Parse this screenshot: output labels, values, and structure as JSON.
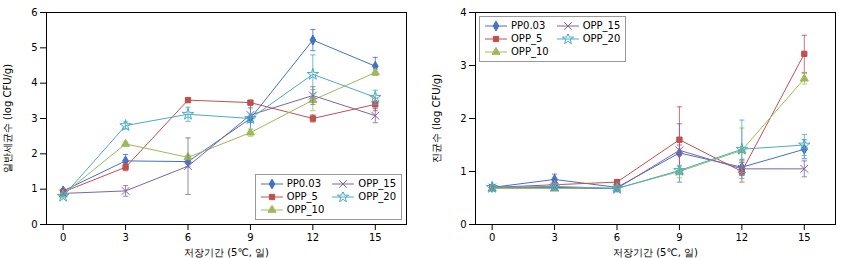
{
  "chart_data": [
    {
      "type": "line",
      "xlabel": "저장기간 (5℃, 일)",
      "ylabel": "일반세균수 (log CFU/g)",
      "x": [
        0,
        3,
        6,
        9,
        12,
        15
      ],
      "xlim": [
        -0.8,
        16.5
      ],
      "xticks": [
        0,
        3,
        6,
        9,
        12,
        15
      ],
      "ylim": [
        0.0,
        6.0
      ],
      "yticks": [
        0,
        1,
        2,
        3,
        4,
        5,
        6
      ],
      "legend": "lower right",
      "series": [
        {
          "name": "PP0.03",
          "color": "#4472C4",
          "marker": "diamond",
          "values": [
            0.95,
            1.8,
            1.78,
            3.0,
            5.22,
            4.48
          ],
          "errors": [
            0.05,
            0.18,
            0.15,
            0.38,
            0.3,
            0.25
          ]
        },
        {
          "name": "OPP_5",
          "color": "#C0504D",
          "marker": "square",
          "values": [
            0.92,
            1.62,
            3.52,
            3.45,
            3.0,
            3.4
          ],
          "errors": [
            0.05,
            0.1,
            0.05,
            0.05,
            0.1,
            0.18
          ]
        },
        {
          "name": "OPP_10",
          "color": "#9BBB59",
          "marker": "triangle",
          "values": [
            0.85,
            2.28,
            1.9,
            2.6,
            3.52,
            4.3
          ],
          "errors": [
            0.05,
            0.05,
            0.05,
            0.1,
            0.3,
            0.08
          ]
        },
        {
          "name": "OPP_15",
          "color": "#8064A2",
          "marker": "x",
          "values": [
            0.88,
            0.95,
            1.65,
            3.1,
            3.65,
            3.08
          ],
          "errors": [
            0.05,
            0.15,
            0.8,
            0.2,
            0.25,
            0.2
          ]
        },
        {
          "name": "OPP_20",
          "color": "#4BACC6",
          "marker": "star",
          "values": [
            0.8,
            2.8,
            3.12,
            3.0,
            4.25,
            3.6
          ],
          "errors": [
            0.05,
            0.1,
            0.2,
            0.1,
            0.55,
            0.2
          ]
        }
      ]
    },
    {
      "type": "line",
      "xlabel": "저장기간 (5℃, 일)",
      "ylabel": "진균수 (log CFU/g)",
      "x": [
        0,
        3,
        6,
        9,
        12,
        15
      ],
      "xlim": [
        -0.8,
        16.5
      ],
      "xticks": [
        0,
        3,
        6,
        9,
        12,
        15
      ],
      "ylim": [
        0.0,
        4.0
      ],
      "yticks": [
        0,
        1,
        2,
        3,
        4
      ],
      "legend": "upper left",
      "series": [
        {
          "name": "PP0.03",
          "color": "#4472C4",
          "marker": "diamond",
          "values": [
            0.7,
            0.85,
            0.7,
            1.35,
            1.08,
            1.42
          ],
          "errors": [
            0.05,
            0.1,
            0.05,
            0.55,
            0.15,
            0.18
          ]
        },
        {
          "name": "OPP_5",
          "color": "#C0504D",
          "marker": "square",
          "values": [
            0.7,
            0.75,
            0.8,
            1.6,
            1.0,
            3.22
          ],
          "errors": [
            0.05,
            0.05,
            0.05,
            0.62,
            0.2,
            0.35
          ]
        },
        {
          "name": "OPP_10",
          "color": "#9BBB59",
          "marker": "triangle",
          "values": [
            0.68,
            0.68,
            0.68,
            1.0,
            1.4,
            2.75
          ],
          "errors": [
            0.05,
            0.05,
            0.05,
            0.12,
            0.42,
            0.1
          ]
        },
        {
          "name": "OPP_15",
          "color": "#8064A2",
          "marker": "x",
          "values": [
            0.7,
            0.7,
            0.68,
            1.4,
            1.05,
            1.05
          ],
          "errors": [
            0.05,
            0.05,
            0.05,
            0.1,
            0.12,
            0.15
          ]
        },
        {
          "name": "OPP_20",
          "color": "#4BACC6",
          "marker": "star",
          "values": [
            0.7,
            0.72,
            0.68,
            1.02,
            1.42,
            1.5
          ],
          "errors": [
            0.05,
            0.05,
            0.05,
            0.08,
            0.55,
            0.2
          ]
        }
      ]
    }
  ]
}
